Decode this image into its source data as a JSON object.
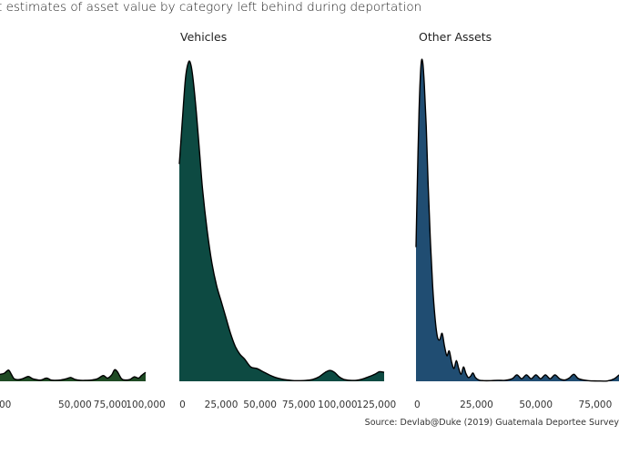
{
  "title": "t estimates of asset value by category left behind during deportation",
  "caption": "Source: Devlab@Duke (2019) Guatemala Deportee Survey",
  "chart_data": [
    {
      "type": "area",
      "panel_title": "",
      "fill_color": "#1f4a24",
      "xlim": [
        -3000,
        100000
      ],
      "ylim": [
        0,
        1
      ],
      "x_ticks": [
        0,
        50000,
        75000,
        100000
      ],
      "x_tick_labels": [
        "00",
        "50,000",
        "75,000",
        "100,000"
      ],
      "x": [
        -3000,
        0,
        3000,
        5000,
        7000,
        10000,
        13000,
        17000,
        20000,
        23000,
        26000,
        30000,
        33000,
        36000,
        40000,
        44000,
        47000,
        50000,
        54000,
        58000,
        62000,
        66000,
        70000,
        73000,
        76000,
        78000,
        80000,
        83000,
        86000,
        89000,
        92000,
        95000,
        97000,
        100000
      ],
      "y": [
        0.022,
        0.025,
        0.035,
        0.022,
        0.008,
        0.005,
        0.008,
        0.015,
        0.008,
        0.005,
        0.004,
        0.01,
        0.004,
        0.003,
        0.004,
        0.008,
        0.012,
        0.006,
        0.003,
        0.003,
        0.004,
        0.008,
        0.018,
        0.01,
        0.02,
        0.036,
        0.03,
        0.008,
        0.004,
        0.006,
        0.014,
        0.01,
        0.018,
        0.028
      ]
    },
    {
      "type": "area",
      "panel_title": "Vehicles",
      "fill_color": "#0d4a42",
      "xlim": [
        -2000,
        130000
      ],
      "ylim": [
        0,
        1
      ],
      "x_ticks": [
        0,
        25000,
        50000,
        75000,
        100000,
        125000
      ],
      "x_tick_labels": [
        "0",
        "25,000",
        "50,000",
        "75,000",
        "100,000",
        "125,000"
      ],
      "x": [
        -2000,
        0,
        2000,
        4000,
        5500,
        7000,
        9000,
        11000,
        13000,
        16000,
        19000,
        22000,
        25000,
        28000,
        31000,
        34000,
        37000,
        40000,
        44000,
        48000,
        52000,
        56000,
        60000,
        64000,
        68000,
        72000,
        76000,
        80000,
        84000,
        88000,
        92000,
        95000,
        98000,
        101000,
        104000,
        108000,
        112000,
        116000,
        120000,
        124000,
        127000,
        130000
      ],
      "y": [
        0.68,
        0.82,
        0.95,
        1.0,
        0.99,
        0.94,
        0.84,
        0.72,
        0.6,
        0.47,
        0.37,
        0.3,
        0.25,
        0.2,
        0.15,
        0.11,
        0.085,
        0.07,
        0.045,
        0.04,
        0.03,
        0.02,
        0.012,
        0.007,
        0.004,
        0.002,
        0.002,
        0.003,
        0.006,
        0.014,
        0.028,
        0.034,
        0.028,
        0.014,
        0.006,
        0.003,
        0.003,
        0.007,
        0.014,
        0.022,
        0.03,
        0.028
      ]
    },
    {
      "type": "area",
      "panel_title": "Other Assets",
      "fill_color": "#204d72",
      "xlim": [
        -500,
        85000
      ],
      "ylim": [
        0,
        1
      ],
      "x_ticks": [
        0,
        25000,
        50000,
        75000
      ],
      "x_tick_labels": [
        "0",
        "25,000",
        "50,000",
        "75,000"
      ],
      "x": [
        -500,
        0,
        800,
        1600,
        2300,
        3000,
        3800,
        4600,
        5500,
        6500,
        7500,
        8500,
        9500,
        10500,
        11500,
        12500,
        13500,
        14500,
        15500,
        16500,
        17500,
        18500,
        19500,
        20500,
        21500,
        22500,
        23500,
        24500,
        26000,
        28000,
        31000,
        34000,
        37000,
        40000,
        42000,
        44000,
        46000,
        48000,
        50000,
        52000,
        54000,
        56000,
        58000,
        60000,
        62000,
        64000,
        66000,
        68000,
        72000,
        76000,
        80000,
        83000,
        85000
      ],
      "y": [
        0.42,
        0.6,
        0.85,
        0.99,
        1.0,
        0.93,
        0.8,
        0.62,
        0.45,
        0.3,
        0.2,
        0.14,
        0.13,
        0.15,
        0.11,
        0.08,
        0.095,
        0.06,
        0.04,
        0.065,
        0.04,
        0.022,
        0.045,
        0.025,
        0.012,
        0.016,
        0.026,
        0.012,
        0.004,
        0.002,
        0.002,
        0.003,
        0.003,
        0.008,
        0.02,
        0.008,
        0.02,
        0.008,
        0.02,
        0.008,
        0.02,
        0.008,
        0.02,
        0.008,
        0.004,
        0.01,
        0.022,
        0.008,
        0.002,
        0.001,
        0.001,
        0.008,
        0.02
      ]
    }
  ]
}
